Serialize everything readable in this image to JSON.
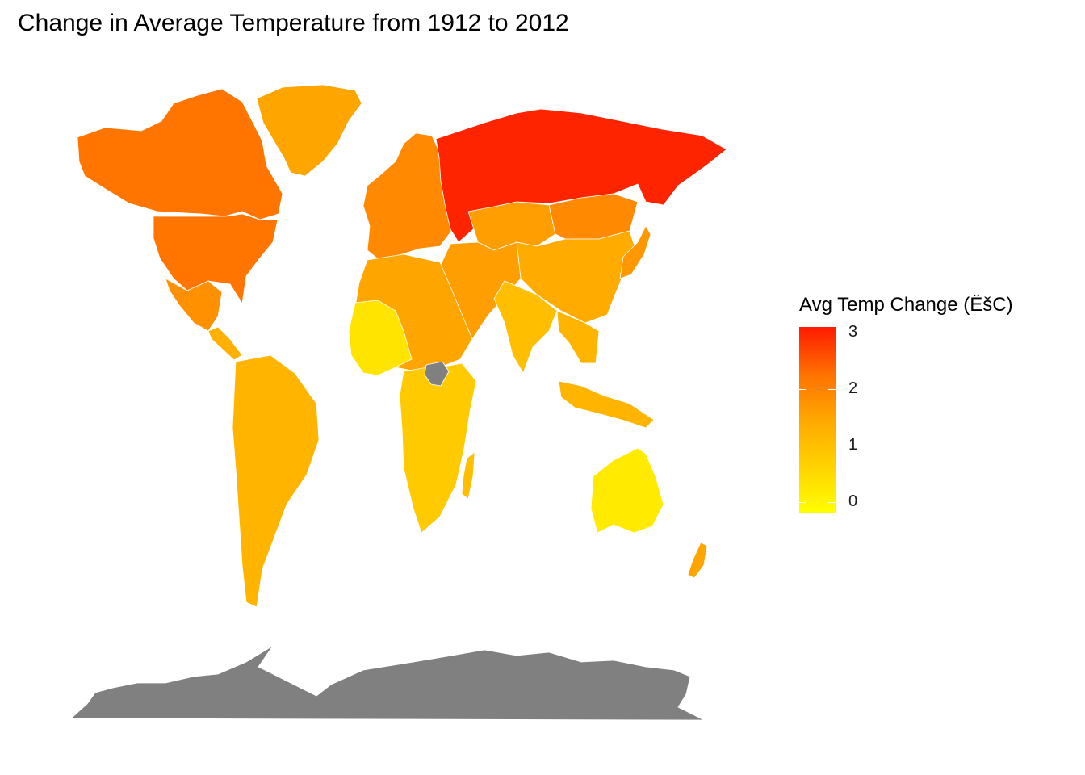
{
  "title": "Change in Average Temperature from 1912 to 2012",
  "legend": {
    "title": "Avg Temp Change (ËšC)",
    "ticks": [
      "3",
      "2",
      "1",
      "0"
    ],
    "tick_values": [
      3,
      2,
      1,
      0
    ],
    "range": [
      -0.2,
      3.1
    ],
    "gradient": [
      "#ff1a00",
      "#ff7000",
      "#ffa800",
      "#ffd300",
      "#ffff00"
    ]
  },
  "colors": {
    "no_data": "#808080",
    "border": "#ffffff",
    "background": "#ffffff"
  },
  "regions": [
    {
      "name": "Russia",
      "value": 3.0
    },
    {
      "name": "Canada",
      "value": 2.2
    },
    {
      "name": "United States",
      "value": 2.2
    },
    {
      "name": "Greenland",
      "value": 1.5
    },
    {
      "name": "Mexico",
      "value": 1.8
    },
    {
      "name": "Central America",
      "value": 1.3
    },
    {
      "name": "South America",
      "value": 1.2
    },
    {
      "name": "Europe",
      "value": 1.9
    },
    {
      "name": "North Africa",
      "value": 1.5
    },
    {
      "name": "West Africa",
      "value": 0.3
    },
    {
      "name": "Central & Southern Africa",
      "value": 0.8
    },
    {
      "name": "South Sudan",
      "value": null
    },
    {
      "name": "Middle East",
      "value": 1.6
    },
    {
      "name": "Kazakhstan",
      "value": 1.6
    },
    {
      "name": "Mongolia",
      "value": 1.9
    },
    {
      "name": "China",
      "value": 1.4
    },
    {
      "name": "India",
      "value": 1.0
    },
    {
      "name": "Southeast Asia",
      "value": 1.2
    },
    {
      "name": "Japan",
      "value": 1.7
    },
    {
      "name": "Indonesia",
      "value": 1.2
    },
    {
      "name": "Australia",
      "value": 0.2
    },
    {
      "name": "New Zealand",
      "value": 1.5
    },
    {
      "name": "Madagascar",
      "value": 1.0
    },
    {
      "name": "Antarctica",
      "value": null
    }
  ]
}
